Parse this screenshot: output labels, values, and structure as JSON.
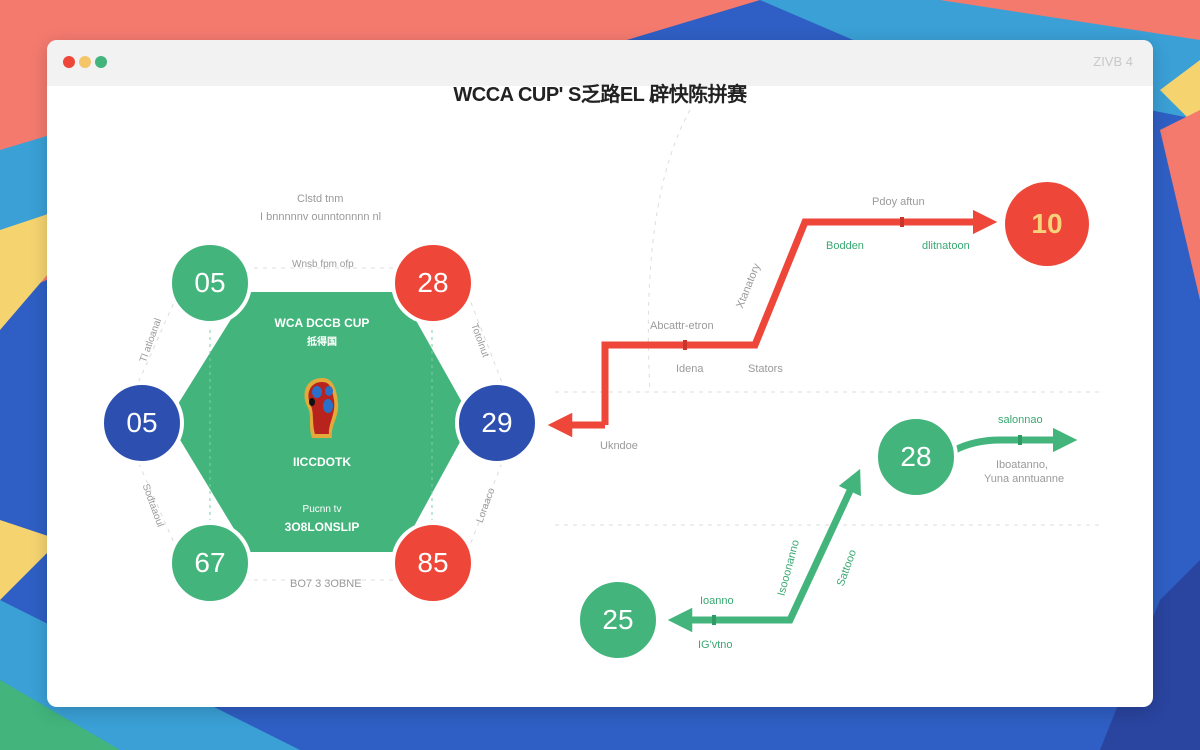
{
  "colors": {
    "green": "#43b47c",
    "red": "#ee4638",
    "blue": "#2c4fb0",
    "yellow": "#f5d470",
    "salmon": "#f47a6e",
    "sky": "#3aa0d6"
  },
  "window": {
    "title_right": "ZIVB 4",
    "controls": [
      "close",
      "minimize",
      "maximize"
    ]
  },
  "header": {
    "title": "WCCA CUP' S乏路EL 辟快陈拼赛"
  },
  "hexagon": {
    "top_caption_1": "Clstd tnm",
    "top_caption_2": "I bnnnnnv ounntonnnn nl",
    "top_edge_label": "Wnsb fpm ofp",
    "inner_title": "WCA DCCB CUP",
    "inner_subtitle": "抵得国",
    "logo_text": "IICCDOTK",
    "inner_small": "Pucnn tv",
    "inner_bottom": "3O8LONSLIP",
    "bottom_edge_label": "BO7 3 3OBNE",
    "left_top_label": "Tl atloanal",
    "left_bottom_label": "Sodtaaoul",
    "right_top_label": "Totolnut",
    "right_bottom_label": "Loraaco",
    "nodes": [
      {
        "value": "05",
        "color": "green"
      },
      {
        "value": "28",
        "color": "red"
      },
      {
        "value": "05",
        "color": "blue"
      },
      {
        "value": "29",
        "color": "blue"
      },
      {
        "value": "67",
        "color": "green"
      },
      {
        "value": "85",
        "color": "red"
      }
    ]
  },
  "red_path": {
    "end_value": "10",
    "labels": {
      "top": "Pdoy aftun",
      "top_left_green": "Bodden",
      "top_right_green": "dlitnatoon",
      "diagonal": "Xtanatory",
      "mid_top": "Abcattr-etron",
      "mid_bottom_1": "Idena",
      "mid_bottom_2": "Stators",
      "bottom": "Ukndoe"
    }
  },
  "green_path": {
    "start_value": "25",
    "mid_value": "28",
    "labels": {
      "right_top": "salonnao",
      "right_bottom_1": "Iboatanno,",
      "right_bottom_2": "Yuna anntuanne",
      "diag_left": "Isooonanno",
      "diag_right": "Sattooo",
      "bottom_top": "Ioanno",
      "bottom_bottom": "IG'vtno"
    }
  }
}
